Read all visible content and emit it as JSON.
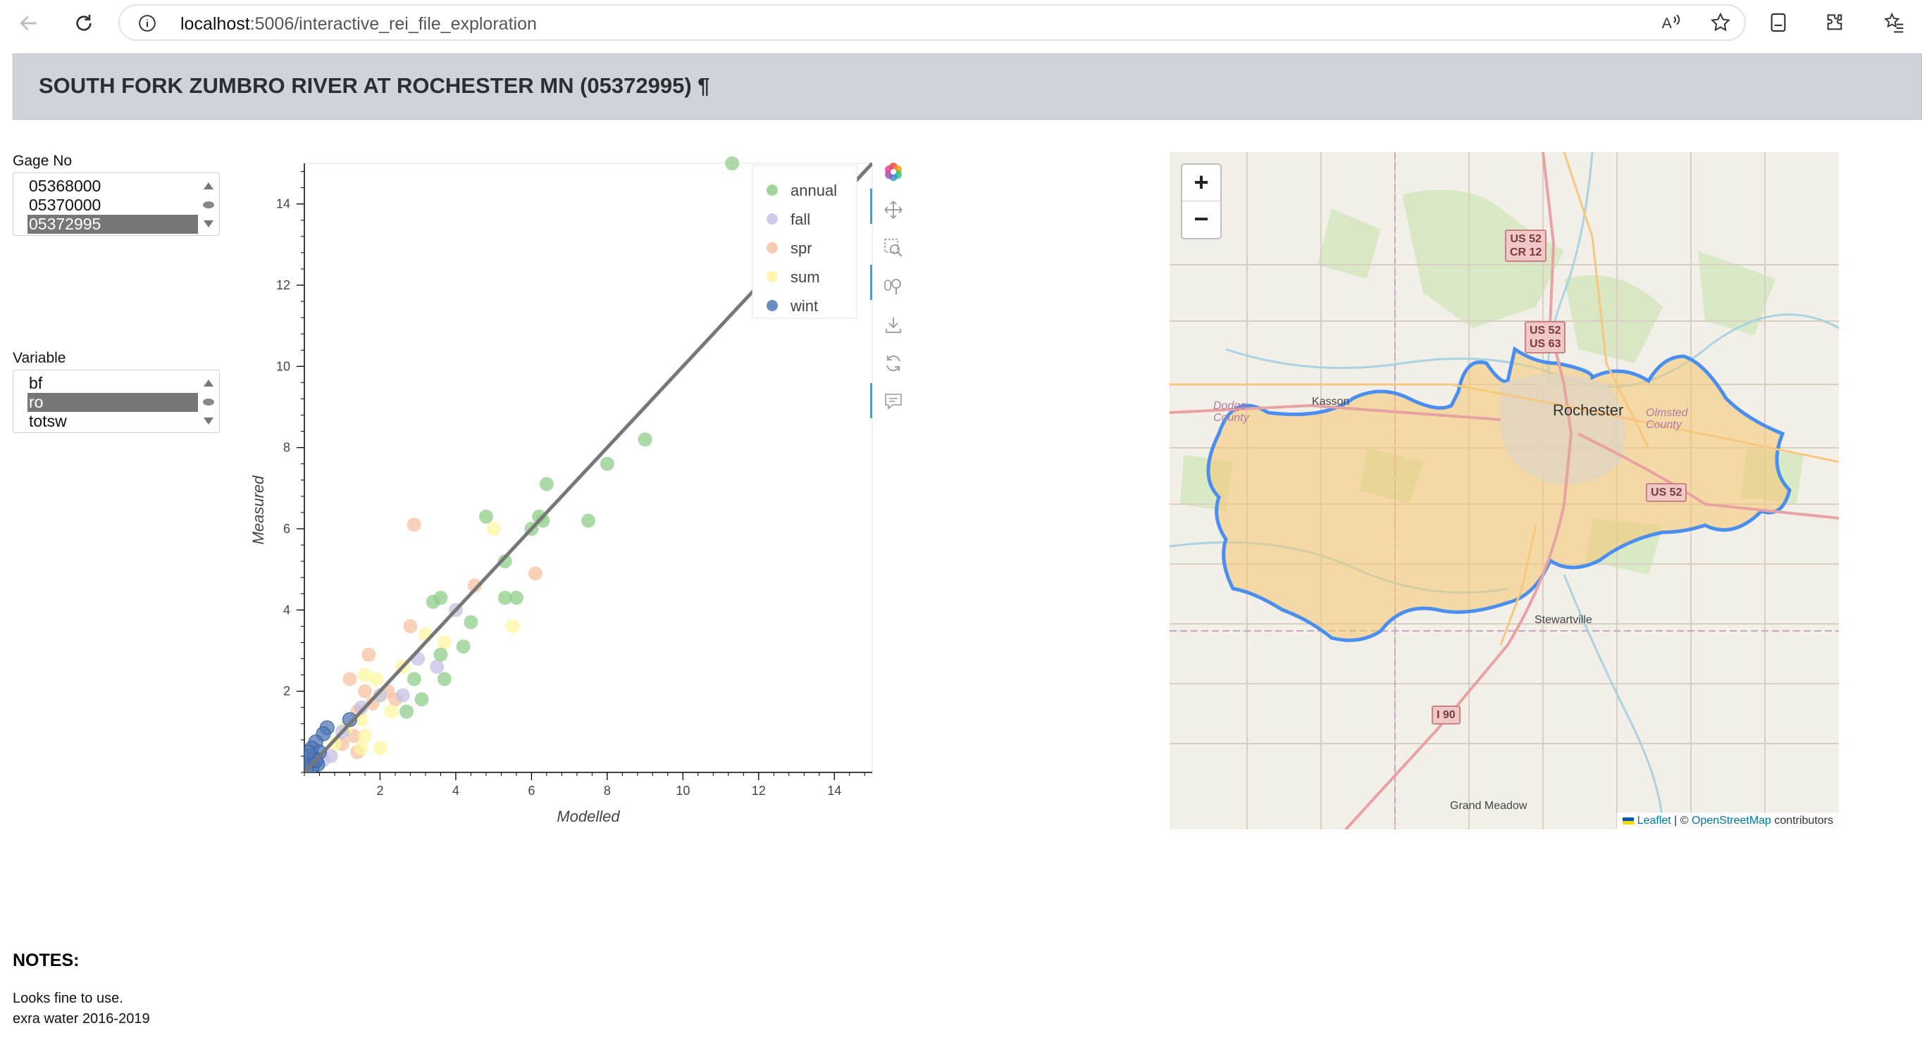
{
  "browser": {
    "url_host": "localhost",
    "url_path": ":5006/interactive_rei_file_exploration"
  },
  "header": {
    "title": "SOUTH FORK ZUMBRO RIVER AT ROCHESTER MN (05372995) ¶"
  },
  "gage_select": {
    "label": "Gage No",
    "options": [
      "05368000",
      "05370000",
      "05372995"
    ],
    "selected": "05372995"
  },
  "variable_select": {
    "label": "Variable",
    "options": [
      "bf",
      "ro",
      "totsw"
    ],
    "selected": "ro"
  },
  "chart_data": {
    "type": "scatter",
    "xlabel": "Modelled",
    "ylabel": "Measured",
    "xlim": [
      0,
      15
    ],
    "ylim": [
      0,
      15
    ],
    "xticks": [
      2,
      4,
      6,
      8,
      10,
      12,
      14
    ],
    "yticks": [
      2,
      4,
      6,
      8,
      10,
      12,
      14
    ],
    "legend_position": "top-right",
    "one_to_one_line": [
      [
        0,
        0
      ],
      [
        15,
        15
      ]
    ],
    "series": [
      {
        "name": "annual",
        "color": "#8fce8a",
        "points": [
          [
            11.3,
            15.0
          ],
          [
            9.0,
            8.2
          ],
          [
            8.0,
            7.6
          ],
          [
            7.5,
            6.2
          ],
          [
            6.4,
            7.1
          ],
          [
            6.3,
            6.2
          ],
          [
            6.2,
            6.3
          ],
          [
            6.0,
            6.0
          ],
          [
            4.8,
            6.3
          ],
          [
            5.3,
            5.2
          ],
          [
            5.6,
            4.3
          ],
          [
            5.3,
            4.3
          ],
          [
            4.4,
            3.7
          ],
          [
            3.4,
            4.2
          ],
          [
            3.6,
            4.3
          ],
          [
            4.2,
            3.1
          ],
          [
            3.6,
            2.9
          ],
          [
            3.7,
            2.3
          ],
          [
            2.9,
            2.3
          ],
          [
            3.1,
            1.8
          ],
          [
            2.7,
            1.5
          ]
        ]
      },
      {
        "name": "fall",
        "color": "#c5bfe3",
        "points": [
          [
            4.0,
            4.0
          ],
          [
            3.5,
            2.6
          ],
          [
            3.0,
            2.8
          ],
          [
            2.6,
            1.9
          ],
          [
            2.0,
            1.9
          ],
          [
            1.5,
            1.6
          ],
          [
            1.0,
            1.0
          ],
          [
            0.7,
            0.4
          ],
          [
            0.5,
            0.3
          ],
          [
            0.3,
            0.2
          ]
        ]
      },
      {
        "name": "spr",
        "color": "#f6c2a0",
        "points": [
          [
            2.9,
            6.1
          ],
          [
            6.1,
            4.9
          ],
          [
            4.5,
            4.6
          ],
          [
            2.8,
            3.6
          ],
          [
            1.7,
            2.9
          ],
          [
            1.2,
            2.3
          ],
          [
            2.2,
            2.0
          ],
          [
            1.6,
            2.0
          ],
          [
            2.4,
            1.8
          ],
          [
            1.8,
            1.7
          ],
          [
            1.4,
            1.5
          ],
          [
            1.3,
            0.9
          ],
          [
            1.0,
            0.7
          ],
          [
            1.4,
            0.5
          ]
        ]
      },
      {
        "name": "sum",
        "color": "#fdf5a1",
        "points": [
          [
            5.0,
            6.0
          ],
          [
            5.5,
            3.6
          ],
          [
            3.7,
            3.2
          ],
          [
            3.2,
            3.4
          ],
          [
            2.6,
            2.6
          ],
          [
            1.9,
            2.3
          ],
          [
            1.6,
            2.4
          ],
          [
            2.0,
            1.9
          ],
          [
            1.5,
            1.3
          ],
          [
            2.3,
            1.5
          ],
          [
            1.1,
            1.1
          ],
          [
            2.0,
            0.6
          ],
          [
            1.6,
            0.9
          ],
          [
            1.5,
            0.6
          ],
          [
            0.8,
            0.7
          ]
        ]
      },
      {
        "name": "wint",
        "color": "#4f78b8",
        "points": [
          [
            1.2,
            1.3
          ],
          [
            0.6,
            1.1
          ],
          [
            0.5,
            0.95
          ],
          [
            0.3,
            0.75
          ],
          [
            0.2,
            0.6
          ],
          [
            0.4,
            0.5
          ],
          [
            0.15,
            0.4
          ],
          [
            0.25,
            0.35
          ],
          [
            0.1,
            0.25
          ],
          [
            0.35,
            0.2
          ],
          [
            0.2,
            0.15
          ],
          [
            0.05,
            0.1
          ],
          [
            0.3,
            0.3
          ],
          [
            0.1,
            0.5
          ]
        ]
      }
    ]
  },
  "map": {
    "zoom_in": "+",
    "zoom_out": "−",
    "places": [
      "Rochester",
      "Kasson",
      "Stewartville",
      "Grand Meadow"
    ],
    "counties": [
      "Dodge",
      "County",
      "Olmsted",
      "County"
    ],
    "shields": [
      "US 52",
      "CR 12",
      "US 52",
      "US 63",
      "US 52",
      "I 90"
    ],
    "attribution": {
      "leaflet": "Leaflet",
      "sep": " | © ",
      "osm": "OpenStreetMap",
      "suffix": " contributors"
    },
    "watershed_color": "#4a8ef0",
    "watershed_fill": "#f5c66f"
  },
  "notes": {
    "title": "NOTES:",
    "lines": [
      "Looks fine to use.",
      "exra water 2016-2019"
    ]
  }
}
